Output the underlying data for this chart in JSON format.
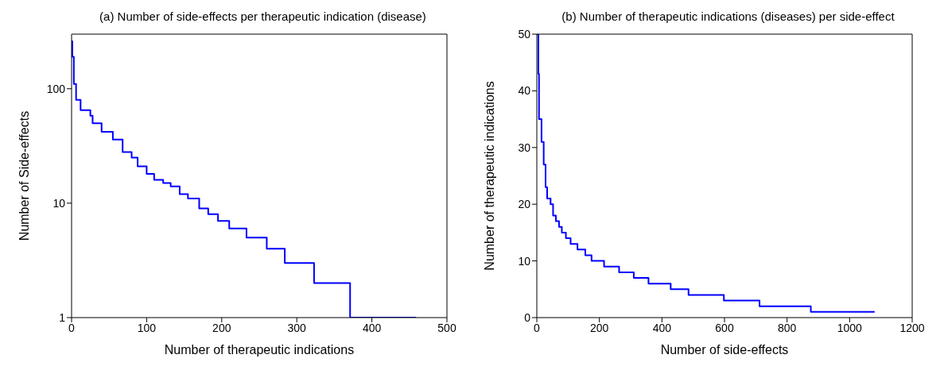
{
  "chart_data": [
    {
      "type": "step",
      "title": "(a) Number of side-effects per therapeutic indication (disease)",
      "xlabel": "Number of therapeutic indications",
      "ylabel": "Number of Side-effects",
      "log": "y",
      "color": "#0000ff",
      "xlim": [
        0,
        500
      ],
      "xticks": [
        0,
        100,
        200,
        300,
        400,
        500
      ],
      "ylim": [
        1,
        300
      ],
      "yticks": [
        1,
        10,
        100
      ],
      "x": [
        0,
        1,
        3,
        6,
        12,
        25,
        28,
        40,
        55,
        68,
        80,
        88,
        100,
        110,
        122,
        132,
        144,
        155,
        170,
        182,
        195,
        210,
        233,
        260,
        284,
        323,
        371,
        459
      ],
      "values": [
        260,
        190,
        110,
        80,
        65,
        58,
        50,
        42,
        36,
        28,
        25,
        21,
        18,
        16,
        15,
        14,
        12,
        11,
        9,
        8,
        7,
        6,
        5,
        4,
        3,
        2,
        1,
        1
      ]
    },
    {
      "type": "step",
      "title": "(b) Number of therapeutic indications (diseases) per side-effect",
      "xlabel": "Number of side-effects",
      "ylabel": "Number of therapeutic indications",
      "color": "#0000ff",
      "xlim": [
        0,
        1200
      ],
      "xticks": [
        0,
        200,
        400,
        600,
        800,
        1000,
        1200
      ],
      "ylim": [
        0,
        50
      ],
      "yticks": [
        0,
        10,
        20,
        30,
        40,
        50
      ],
      "x": [
        0,
        5,
        7,
        15,
        22,
        28,
        33,
        44,
        52,
        61,
        71,
        80,
        93,
        108,
        130,
        155,
        175,
        215,
        263,
        310,
        357,
        428,
        485,
        598,
        712,
        876,
        1080
      ],
      "values": [
        50,
        43,
        35,
        31,
        27,
        23,
        21,
        20,
        18,
        17,
        16,
        15,
        14,
        13,
        12,
        11,
        10,
        9,
        8,
        7,
        6,
        5,
        4,
        3,
        2,
        1,
        1
      ]
    }
  ]
}
